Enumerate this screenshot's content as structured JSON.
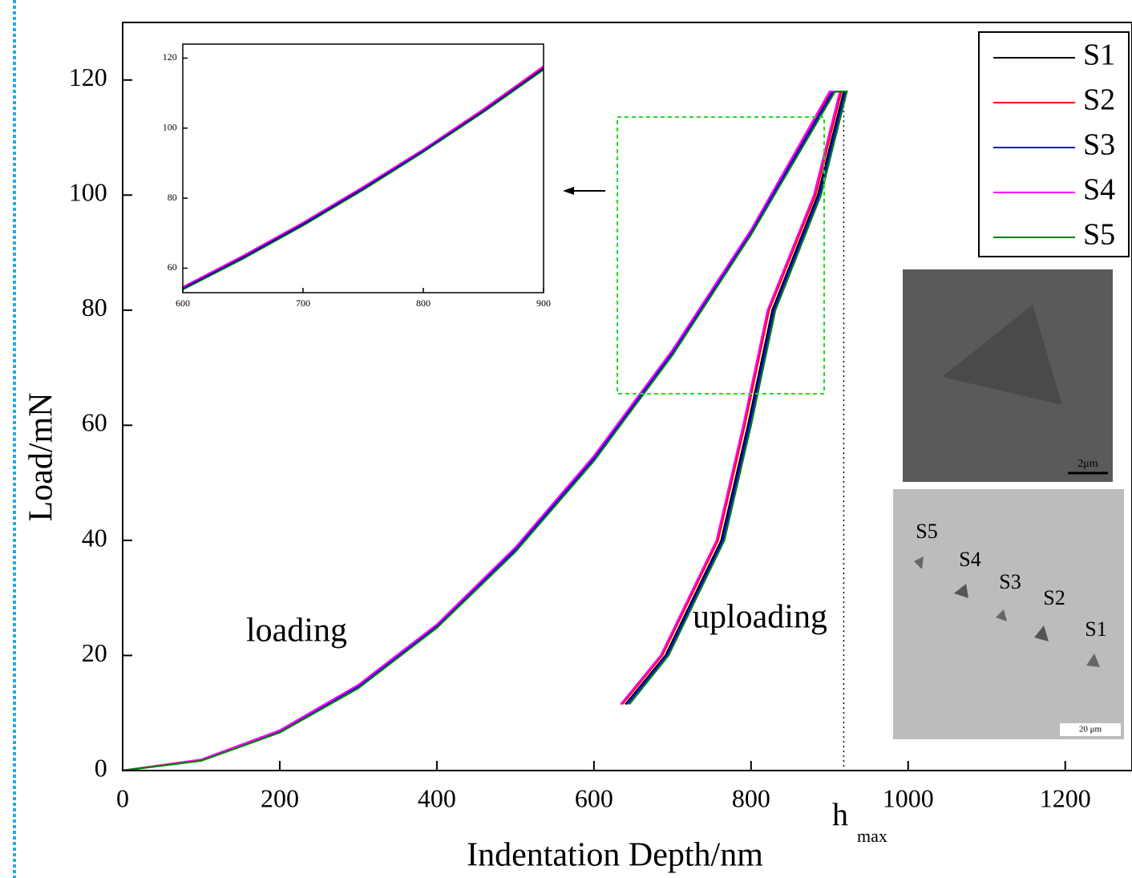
{
  "chart_data": [
    {
      "type": "line",
      "x_label": "Indentation Depth/nm",
      "y_label": "Load/mN",
      "xlim": [
        0,
        1285
      ],
      "ylim": [
        0,
        130
      ],
      "xticks": [
        0,
        200,
        400,
        600,
        800,
        1000,
        1200
      ],
      "yticks": [
        0,
        20,
        40,
        60,
        80,
        100,
        120
      ],
      "legend": "upper right",
      "series": [
        {
          "name": "S1",
          "color": "#000000",
          "x": [
            0,
            100,
            200,
            300,
            400,
            500,
            600,
            700,
            800,
            905,
            918,
            885,
            827,
            796,
            762,
            691,
            640
          ],
          "values": [
            0,
            1.8,
            6.7,
            14.5,
            25.0,
            38.2,
            54.0,
            72.4,
            93.3,
            118,
            118,
            100,
            80,
            60,
            40,
            20,
            11.5
          ]
        },
        {
          "name": "S2",
          "color": "#ff0000",
          "x": [
            0,
            100,
            200,
            300,
            400,
            500,
            600,
            700,
            800,
            902,
            915,
            882,
            823,
            792,
            758,
            687,
            636
          ],
          "values": [
            0,
            1.9,
            6.9,
            14.8,
            25.3,
            38.6,
            54.5,
            72.9,
            93.8,
            118,
            118,
            100,
            80,
            60,
            40,
            20,
            11.5
          ]
        },
        {
          "name": "S3",
          "color": "#0000ff",
          "x": [
            0,
            100,
            200,
            300,
            400,
            500,
            600,
            700,
            800,
            904,
            920,
            887,
            829,
            798,
            764,
            693,
            642
          ],
          "values": [
            0,
            1.8,
            6.8,
            14.6,
            25.1,
            38.4,
            54.2,
            72.6,
            93.5,
            118,
            118,
            100,
            80,
            60,
            40,
            20,
            11.5
          ]
        },
        {
          "name": "S4",
          "color": "#ff00ff",
          "x": [
            0,
            100,
            200,
            300,
            400,
            500,
            600,
            700,
            800,
            900,
            913,
            880,
            821,
            790,
            756,
            685,
            634
          ],
          "values": [
            0,
            1.9,
            7.0,
            14.9,
            25.4,
            38.8,
            54.7,
            73.1,
            94.0,
            118,
            118,
            100,
            80,
            60,
            40,
            20,
            11.5
          ]
        },
        {
          "name": "S5",
          "color": "#008000",
          "x": [
            0,
            100,
            200,
            300,
            400,
            500,
            600,
            700,
            800,
            907,
            922,
            889,
            831,
            800,
            766,
            695,
            645
          ],
          "values": [
            0,
            1.7,
            6.6,
            14.3,
            24.8,
            38.0,
            53.8,
            72.2,
            93.1,
            118,
            118,
            100,
            80,
            60,
            40,
            20,
            11.5
          ]
        }
      ],
      "annotations": [
        "loading",
        "uploading"
      ],
      "vline": {
        "x": 918,
        "label": "h",
        "sub": "max"
      }
    },
    {
      "type": "line",
      "xlim": [
        600,
        900
      ],
      "ylim": [
        53,
        124
      ],
      "xticks": [
        600,
        700,
        800,
        900
      ],
      "yticks": [
        60,
        80,
        100,
        120
      ],
      "series": [
        {
          "color": "#000000",
          "x": [
            600,
            650,
            700,
            750,
            800,
            850,
            900
          ],
          "values": [
            54.0,
            62.9,
            72.4,
            82.6,
            93.3,
            104.7,
            116.8
          ]
        },
        {
          "color": "#ff0000",
          "x": [
            600,
            650,
            700,
            750,
            800,
            850,
            900
          ],
          "values": [
            54.4,
            63.3,
            72.8,
            83.0,
            93.8,
            105.2,
            117.4
          ]
        },
        {
          "color": "#0000ff",
          "x": [
            600,
            650,
            700,
            750,
            800,
            850,
            900
          ],
          "values": [
            54.2,
            63.1,
            72.6,
            82.8,
            93.5,
            104.9,
            117.1
          ]
        },
        {
          "color": "#ff00ff",
          "x": [
            600,
            650,
            700,
            750,
            800,
            850,
            900
          ],
          "values": [
            54.7,
            63.6,
            73.1,
            83.3,
            94.0,
            105.5,
            117.8
          ]
        },
        {
          "color": "#008000",
          "x": [
            600,
            650,
            700,
            750,
            800,
            850,
            900
          ],
          "values": [
            53.8,
            62.6,
            72.1,
            82.3,
            93.1,
            104.5,
            116.6
          ]
        }
      ]
    }
  ],
  "images": [
    {
      "scale_label": "2μm"
    },
    {
      "scale_label": "20 μm",
      "labels": [
        "S5",
        "S4",
        "S3",
        "S2",
        "S1"
      ]
    }
  ]
}
